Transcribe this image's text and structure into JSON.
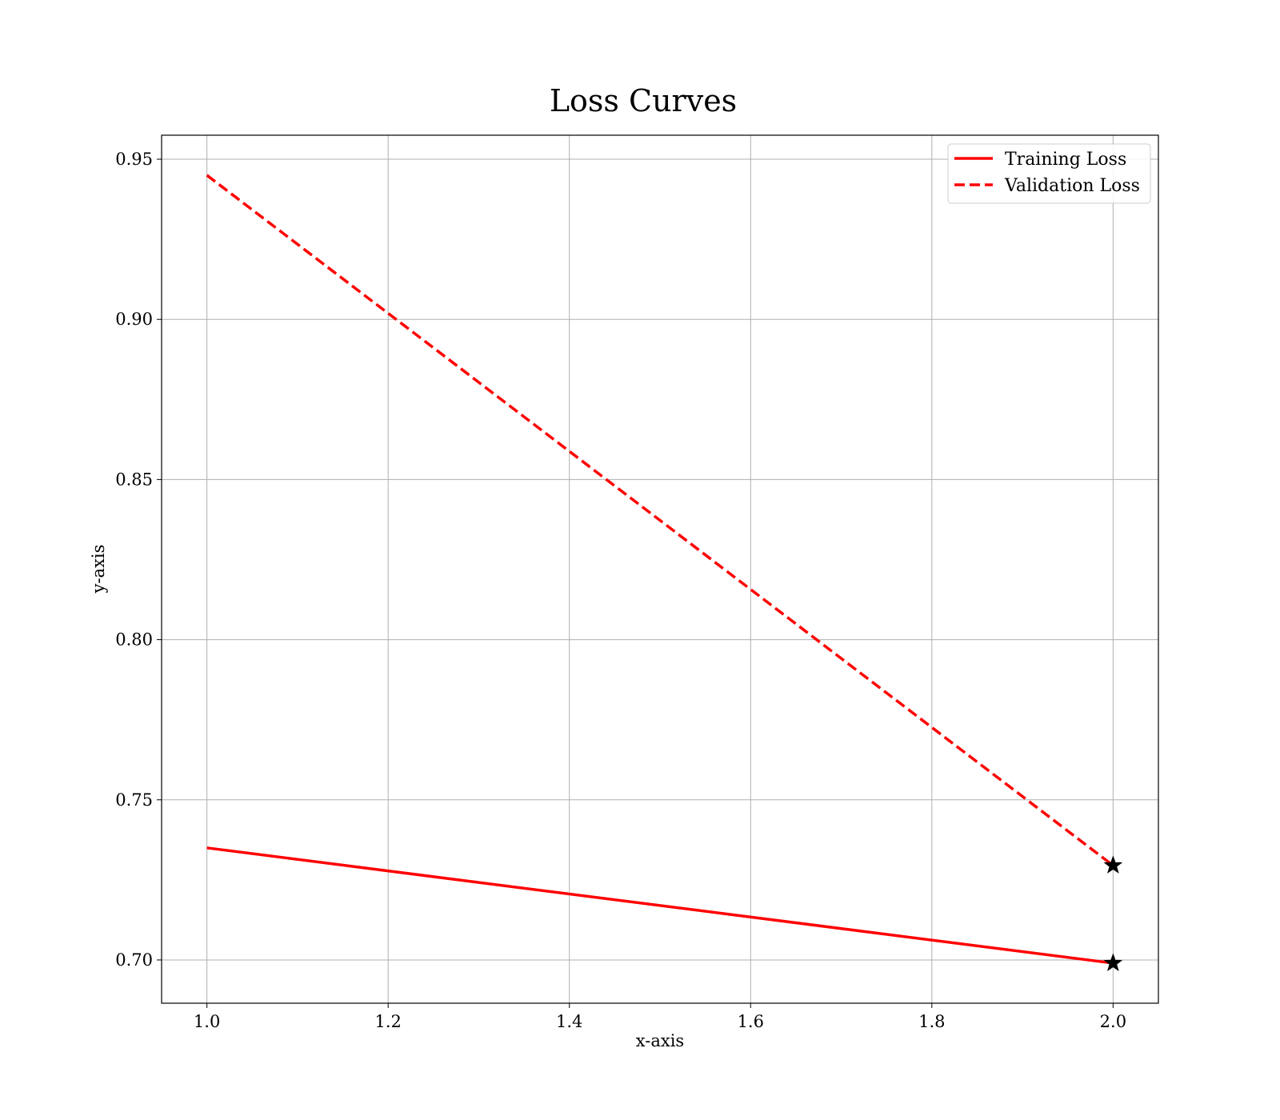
{
  "chart_data": {
    "type": "line",
    "title": "Loss Curves",
    "xlabel": "x-axis",
    "ylabel": "y-axis",
    "xlim": [
      0.95,
      2.05
    ],
    "ylim": [
      0.6865,
      0.9575
    ],
    "xticks": [
      1.0,
      1.2,
      1.4,
      1.6,
      1.8,
      2.0
    ],
    "xtick_labels": [
      "1.0",
      "1.2",
      "1.4",
      "1.6",
      "1.8",
      "2.0"
    ],
    "yticks": [
      0.7,
      0.75,
      0.8,
      0.85,
      0.9,
      0.95
    ],
    "ytick_labels": [
      "0.70",
      "0.75",
      "0.80",
      "0.85",
      "0.90",
      "0.95"
    ],
    "grid": true,
    "legend_position": "top-right",
    "series": [
      {
        "name": "Training Loss",
        "style": "solid",
        "color": "#ff0000",
        "x": [
          1.0,
          2.0
        ],
        "y": [
          0.735,
          0.699
        ],
        "end_marker": "star"
      },
      {
        "name": "Validation Loss",
        "style": "dashed",
        "color": "#ff0000",
        "x": [
          1.0,
          2.0
        ],
        "y": [
          0.945,
          0.7295
        ],
        "end_marker": "star"
      }
    ]
  }
}
